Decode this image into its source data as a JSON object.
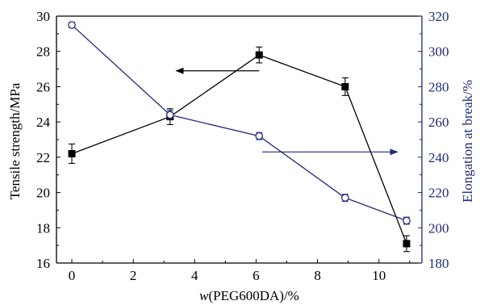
{
  "colors": {
    "left_axis": "#000000",
    "right_axis": "#1f2a7a",
    "series_strength": "#000000",
    "series_elongation": "#1f2a7a"
  },
  "chart_data": {
    "type": "line",
    "x": [
      0,
      3.2,
      6.1,
      8.9,
      10.9
    ],
    "xlabel_italic": "w",
    "xlabel_rest": "(PEG600DA)/%",
    "ylabel_left": "Tensile strength/MPa",
    "ylabel_right": "Elongation at break/%",
    "xlim": [
      -0.5,
      11.4
    ],
    "ylim_left": [
      16,
      30
    ],
    "ylim_right": [
      180,
      320
    ],
    "xticks": [
      0,
      2,
      4,
      6,
      8,
      10
    ],
    "yticks_left": [
      16,
      18,
      20,
      22,
      24,
      26,
      28,
      30
    ],
    "yticks_right": [
      180,
      200,
      220,
      240,
      260,
      280,
      300,
      320
    ],
    "series": [
      {
        "axis": "left",
        "marker": "filled-square",
        "values": [
          22.2,
          24.3,
          27.8,
          26.0,
          17.1
        ],
        "errors": [
          0.55,
          0.45,
          0.45,
          0.5,
          0.45
        ]
      },
      {
        "axis": "right",
        "marker": "open-circle",
        "values": [
          315,
          264,
          252,
          217,
          204
        ],
        "errors": [
          1.5,
          2.5,
          2.0,
          2.0,
          2.0
        ]
      }
    ],
    "annotations": [
      {
        "type": "arrow",
        "points_to": "left-axis",
        "from": [
          6.1,
          26.9
        ],
        "to": [
          3.4,
          26.9
        ]
      },
      {
        "type": "arrow",
        "points_to": "right-axis",
        "from": [
          6.2,
          243
        ],
        "to": [
          10.6,
          243
        ]
      }
    ],
    "grid": false,
    "legend": "none"
  }
}
